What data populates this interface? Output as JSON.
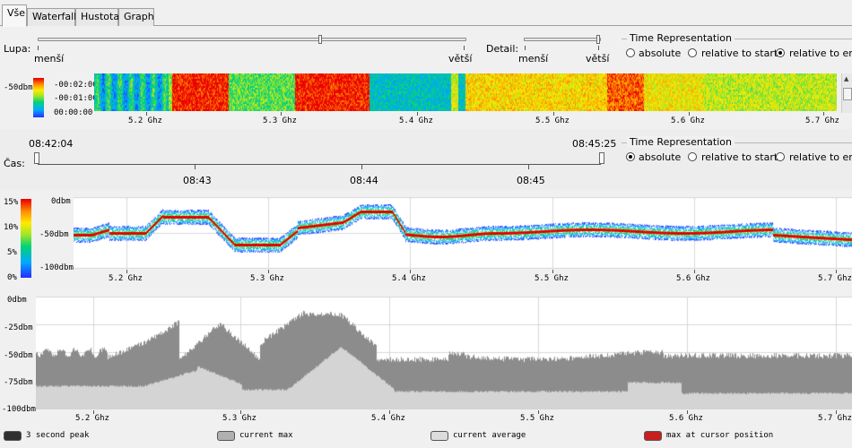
{
  "tabs": [
    {
      "label": "Vše",
      "active": true
    },
    {
      "label": "Waterfall",
      "active": false
    },
    {
      "label": "Hustota",
      "active": false
    },
    {
      "label": "Graph",
      "active": false
    }
  ],
  "zoom": {
    "label": "Lupa:",
    "min_label": "menší",
    "max_label": "větší",
    "value": 0.66
  },
  "detail": {
    "label": "Detail:",
    "min_label": "menší",
    "max_label": "větší",
    "value": 0.96
  },
  "time_rep_top": {
    "title": "Time Representation",
    "options": [
      "absolute",
      "relative to start",
      "relative to end"
    ],
    "selected": 2
  },
  "time_rep_bottom": {
    "title": "Time Representation",
    "options": [
      "absolute",
      "relative to start",
      "relative to end"
    ],
    "selected": 0
  },
  "waterfall": {
    "scale_label": "-50dbm",
    "time_labels": [
      "-00:02:00",
      "-00:01:00",
      "00:00:00"
    ],
    "freq_labels": [
      "5.2 Ghz",
      "5.3 Ghz",
      "5.4 Ghz",
      "5.5 Ghz",
      "5.6 Ghz",
      "5.7 Ghz"
    ]
  },
  "time": {
    "label": "Čas:",
    "start": "08:42:04",
    "end": "08:45:25",
    "ticks": [
      "08:43",
      "08:44",
      "08:45"
    ]
  },
  "density": {
    "pct_labels": [
      "15%",
      "10%",
      "5%",
      "0%"
    ],
    "db_labels": [
      "0dbm",
      "-50dbm",
      "-100dbm"
    ],
    "freq_labels": [
      "5.2 Ghz",
      "5.3 Ghz",
      "5.4 Ghz",
      "5.5 Ghz",
      "5.6 Ghz",
      "5.7 Ghz"
    ]
  },
  "graph": {
    "db_labels": [
      "0dbm",
      "-25dbm",
      "-50dbm",
      "-75dbm",
      "-100dbm"
    ],
    "freq_labels": [
      "5.2 Ghz",
      "5.3 Ghz",
      "5.4 Ghz",
      "5.5 Ghz",
      "5.6 Ghz",
      "5.7 Ghz"
    ]
  },
  "legend": [
    {
      "label": "3 second peak",
      "color": "#303030"
    },
    {
      "label": "current max",
      "color": "#b0b0b0"
    },
    {
      "label": "current average",
      "color": "#dcdcdc"
    },
    {
      "label": "max at cursor position",
      "color": "#c81e1e"
    }
  ],
  "colors": {
    "graph_max": "#8c8c8c",
    "graph_avg": "#d4d4d4",
    "trace_red": "#e00000"
  }
}
